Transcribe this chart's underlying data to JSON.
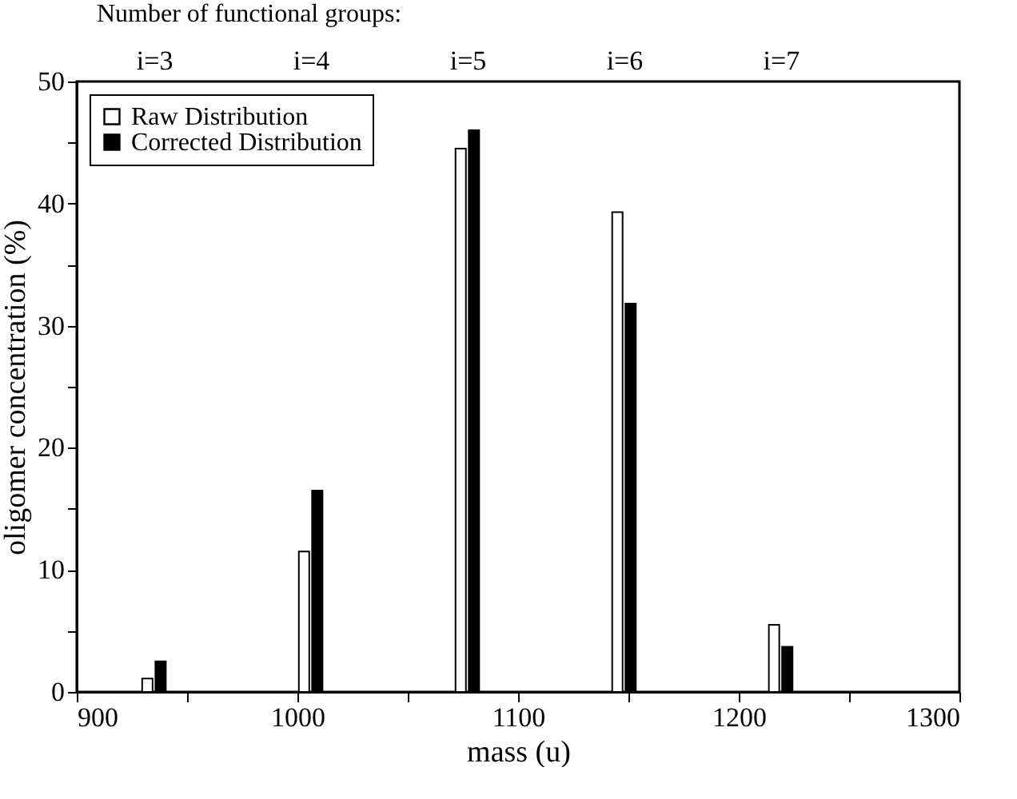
{
  "chart_data": {
    "type": "bar",
    "xlabel": "mass (u)",
    "ylabel": "oligomer concentration (%)",
    "x2label": "Number of functional groups:",
    "series": [
      {
        "name": "Raw Distribution",
        "color": "#ffffff",
        "x": [
          932,
          1003,
          1074,
          1145,
          1216
        ],
        "values": [
          1.1,
          11.5,
          44.5,
          39.3,
          5.5
        ]
      },
      {
        "name": "Corrected Distribution",
        "color": "#000000",
        "x": [
          938,
          1009,
          1080,
          1151,
          1222
        ],
        "values": [
          2.5,
          16.5,
          46.0,
          31.8,
          3.7
        ]
      }
    ],
    "xlim": [
      900,
      1300
    ],
    "xticks": [
      900,
      {
        "value": 950,
        "label": null
      },
      1000,
      {
        "value": 1050,
        "label": null
      },
      1100,
      {
        "value": 1150,
        "label": null
      },
      1200,
      {
        "value": 1250,
        "label": null
      },
      1300
    ],
    "x2lim": [
      2.507,
      8.141
    ],
    "x2ticks": [
      {
        "value": 3,
        "label": "i=3"
      },
      {
        "value": 4,
        "label": "i=4"
      },
      {
        "value": 5,
        "label": "i=5"
      },
      {
        "value": 6,
        "label": "i=6"
      },
      {
        "value": 7,
        "label": "i=7"
      }
    ],
    "ylim": [
      0,
      50
    ],
    "yticks": [
      0,
      {
        "value": 5,
        "label": null
      },
      10,
      {
        "value": 15,
        "label": null
      },
      20,
      {
        "value": 25,
        "label": null
      },
      30,
      {
        "value": 35,
        "label": null
      },
      40,
      {
        "value": 45,
        "label": null
      },
      50
    ],
    "legend": "top left",
    "grid": false
  }
}
